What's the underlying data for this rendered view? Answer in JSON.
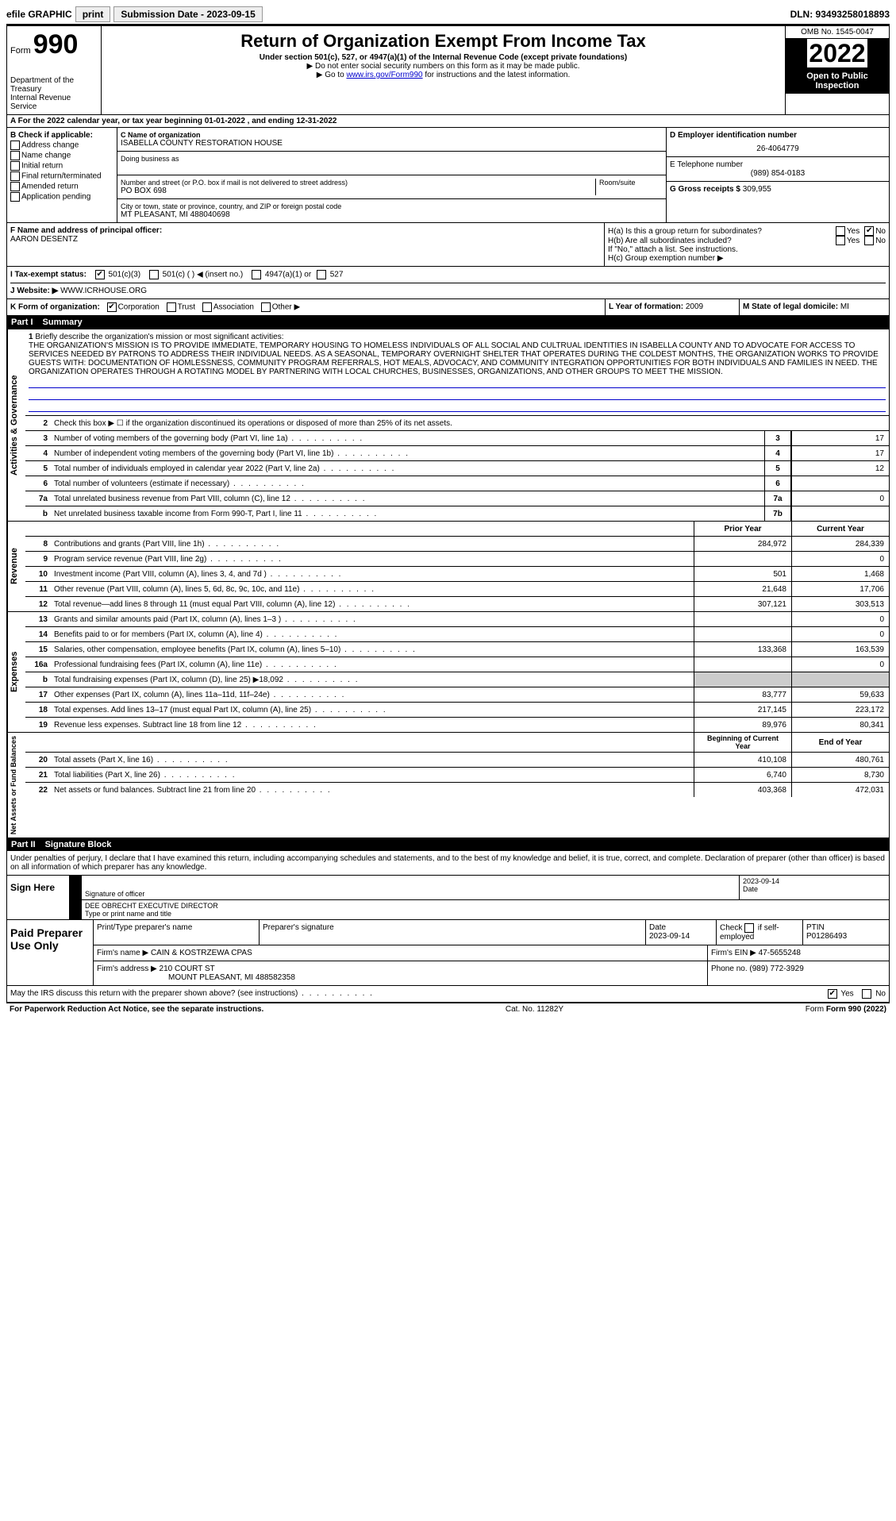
{
  "top": {
    "efile": "efile GRAPHIC",
    "print": "print",
    "sub_label": "Submission Date - 2023-09-15",
    "dln": "DLN: 93493258018893"
  },
  "header": {
    "form": "Form",
    "form_num": "990",
    "dept": "Department of the Treasury",
    "irs": "Internal Revenue Service",
    "title": "Return of Organization Exempt From Income Tax",
    "sub1": "Under section 501(c), 527, or 4947(a)(1) of the Internal Revenue Code (except private foundations)",
    "sub2": "▶ Do not enter social security numbers on this form as it may be made public.",
    "sub3_pre": "▶ Go to ",
    "sub3_link": "www.irs.gov/Form990",
    "sub3_post": " for instructions and the latest information.",
    "omb": "OMB No. 1545-0047",
    "year": "2022",
    "open": "Open to Public Inspection"
  },
  "line_a": "A For the 2022 calendar year, or tax year beginning 01-01-2022   , and ending 12-31-2022",
  "b": {
    "header": "B Check if applicable:",
    "items": [
      "Address change",
      "Name change",
      "Initial return",
      "Final return/terminated",
      "Amended return",
      "Application pending"
    ]
  },
  "c": {
    "label": "C Name of organization",
    "name": "ISABELLA COUNTY RESTORATION HOUSE",
    "dba_label": "Doing business as",
    "addr_label": "Number and street (or P.O. box if mail is not delivered to street address)",
    "addr": "PO BOX 698",
    "room_label": "Room/suite",
    "city_label": "City or town, state or province, country, and ZIP or foreign postal code",
    "city": "MT PLEASANT, MI  488040698"
  },
  "d": {
    "label": "D Employer identification number",
    "value": "26-4064779"
  },
  "e": {
    "label": "E Telephone number",
    "value": "(989) 854-0183"
  },
  "g": {
    "label": "G Gross receipts $",
    "value": "309,955"
  },
  "f": {
    "label": "F  Name and address of principal officer:",
    "value": "AARON DESENTZ"
  },
  "h": {
    "a_label": "H(a)  Is this a group return for subordinates?",
    "b_label": "H(b)  Are all subordinates included?",
    "note": "If \"No,\" attach a list. See instructions.",
    "c_label": "H(c)  Group exemption number ▶",
    "yes": "Yes",
    "no": "No"
  },
  "i": {
    "label": "I   Tax-exempt status:",
    "opt1": "501(c)(3)",
    "opt2": "501(c) (  ) ◀ (insert no.)",
    "opt3": "4947(a)(1) or",
    "opt4": "527"
  },
  "j": {
    "label": "J   Website: ▶",
    "value": "WWW.ICRHOUSE.ORG"
  },
  "k": {
    "label": "K Form of organization:",
    "opts": [
      "Corporation",
      "Trust",
      "Association",
      "Other ▶"
    ]
  },
  "l": {
    "label": "L Year of formation:",
    "value": "2009"
  },
  "m": {
    "label": "M State of legal domicile:",
    "value": "MI"
  },
  "part1": {
    "num": "Part I",
    "title": "Summary"
  },
  "summary": {
    "vert1": "Activities & Governance",
    "line1_label": "1",
    "line1_text": "Briefly describe the organization's mission or most significant activities:",
    "mission": "THE ORGANIZATION'S MISSION IS TO PROVIDE IMMEDIATE, TEMPORARY HOUSING TO HOMELESS INDIVIDUALS OF ALL SOCIAL AND CULTRUAL IDENTITIES IN ISABELLA COUNTY AND TO ADVOCATE FOR ACCESS TO SERVICES NEEDED BY PATRONS TO ADDRESS THEIR INDIVIDUAL NEEDS. AS A SEASONAL, TEMPORARY OVERNIGHT SHELTER THAT OPERATES DURING THE COLDEST MONTHS, THE ORGANIZATION WORKS TO PROVIDE GUESTS WITH: DOCUMENTATION OF HOMLESSNESS, COMMUNITY PROGRAM REFERRALS, HOT MEALS, ADVOCACY, AND COMMUNITY INTEGRATION OPPORTUNITIES FOR BOTH INDIVIDUALS AND FAMILIES IN NEED. THE ORGANIZATION OPERATES THROUGH A ROTATING MODEL BY PARTNERING WITH LOCAL CHURCHES, BUSINESSES, ORGANIZATIONS, AND OTHER GROUPS TO MEET THE MISSION.",
    "line2": "Check this box ▶ ☐ if the organization discontinued its operations or disposed of more than 25% of its net assets.",
    "rows_gov": [
      {
        "n": "3",
        "t": "Number of voting members of the governing body (Part VI, line 1a)",
        "lbl": "3",
        "v": "17"
      },
      {
        "n": "4",
        "t": "Number of independent voting members of the governing body (Part VI, line 1b)",
        "lbl": "4",
        "v": "17"
      },
      {
        "n": "5",
        "t": "Total number of individuals employed in calendar year 2022 (Part V, line 2a)",
        "lbl": "5",
        "v": "12"
      },
      {
        "n": "6",
        "t": "Total number of volunteers (estimate if necessary)",
        "lbl": "6",
        "v": ""
      },
      {
        "n": "7a",
        "t": "Total unrelated business revenue from Part VIII, column (C), line 12",
        "lbl": "7a",
        "v": "0"
      },
      {
        "n": "b",
        "t": "Net unrelated business taxable income from Form 990-T, Part I, line 11",
        "lbl": "7b",
        "v": ""
      }
    ],
    "col_prior": "Prior Year",
    "col_current": "Current Year",
    "vert2": "Revenue",
    "rows_rev": [
      {
        "n": "8",
        "t": "Contributions and grants (Part VIII, line 1h)",
        "p": "284,972",
        "c": "284,339"
      },
      {
        "n": "9",
        "t": "Program service revenue (Part VIII, line 2g)",
        "p": "",
        "c": "0"
      },
      {
        "n": "10",
        "t": "Investment income (Part VIII, column (A), lines 3, 4, and 7d )",
        "p": "501",
        "c": "1,468"
      },
      {
        "n": "11",
        "t": "Other revenue (Part VIII, column (A), lines 5, 6d, 8c, 9c, 10c, and 11e)",
        "p": "21,648",
        "c": "17,706"
      },
      {
        "n": "12",
        "t": "Total revenue—add lines 8 through 11 (must equal Part VIII, column (A), line 12)",
        "p": "307,121",
        "c": "303,513"
      }
    ],
    "vert3": "Expenses",
    "rows_exp": [
      {
        "n": "13",
        "t": "Grants and similar amounts paid (Part IX, column (A), lines 1–3 )",
        "p": "",
        "c": "0"
      },
      {
        "n": "14",
        "t": "Benefits paid to or for members (Part IX, column (A), line 4)",
        "p": "",
        "c": "0"
      },
      {
        "n": "15",
        "t": "Salaries, other compensation, employee benefits (Part IX, column (A), lines 5–10)",
        "p": "133,368",
        "c": "163,539"
      },
      {
        "n": "16a",
        "t": "Professional fundraising fees (Part IX, column (A), line 11e)",
        "p": "",
        "c": "0"
      },
      {
        "n": "b",
        "t": "Total fundraising expenses (Part IX, column (D), line 25) ▶18,092",
        "p": "shaded",
        "c": "shaded"
      },
      {
        "n": "17",
        "t": "Other expenses (Part IX, column (A), lines 11a–11d, 11f–24e)",
        "p": "83,777",
        "c": "59,633"
      },
      {
        "n": "18",
        "t": "Total expenses. Add lines 13–17 (must equal Part IX, column (A), line 25)",
        "p": "217,145",
        "c": "223,172"
      },
      {
        "n": "19",
        "t": "Revenue less expenses. Subtract line 18 from line 12",
        "p": "89,976",
        "c": "80,341"
      }
    ],
    "col_begin": "Beginning of Current Year",
    "col_end": "End of Year",
    "vert4": "Net Assets or Fund Balances",
    "rows_net": [
      {
        "n": "20",
        "t": "Total assets (Part X, line 16)",
        "p": "410,108",
        "c": "480,761"
      },
      {
        "n": "21",
        "t": "Total liabilities (Part X, line 26)",
        "p": "6,740",
        "c": "8,730"
      },
      {
        "n": "22",
        "t": "Net assets or fund balances. Subtract line 21 from line 20",
        "p": "403,368",
        "c": "472,031"
      }
    ]
  },
  "part2": {
    "num": "Part II",
    "title": "Signature Block"
  },
  "sig": {
    "jurat": "Under penalties of perjury, I declare that I have examined this return, including accompanying schedules and statements, and to the best of my knowledge and belief, it is true, correct, and complete. Declaration of preparer (other than officer) is based on all information of which preparer has any knowledge.",
    "sign_here": "Sign Here",
    "sig_officer": "Signature of officer",
    "date_label": "Date",
    "date": "2023-09-14",
    "name": "DEE OBRECHT EXECUTIVE DIRECTOR",
    "name_label": "Type or print name and title"
  },
  "paid": {
    "title": "Paid Preparer Use Only",
    "h1": "Print/Type preparer's name",
    "h2": "Preparer's signature",
    "h3": "Date",
    "date": "2023-09-14",
    "h4_a": "Check",
    "h4_b": "if self-employed",
    "h5": "PTIN",
    "ptin": "P01286493",
    "firm_label": "Firm's name   ▶",
    "firm": "CAIN & KOSTRZEWA CPAS",
    "ein_label": "Firm's EIN ▶",
    "ein": "47-5655248",
    "addr_label": "Firm's address ▶",
    "addr1": "210 COURT ST",
    "addr2": "MOUNT PLEASANT, MI  488582358",
    "phone_label": "Phone no.",
    "phone": "(989) 772-3929"
  },
  "discuss": {
    "text": "May the IRS discuss this return with the preparer shown above? (see instructions)",
    "yes": "Yes",
    "no": "No"
  },
  "footer": {
    "left": "For Paperwork Reduction Act Notice, see the separate instructions.",
    "mid": "Cat. No. 11282Y",
    "right": "Form 990 (2022)"
  }
}
